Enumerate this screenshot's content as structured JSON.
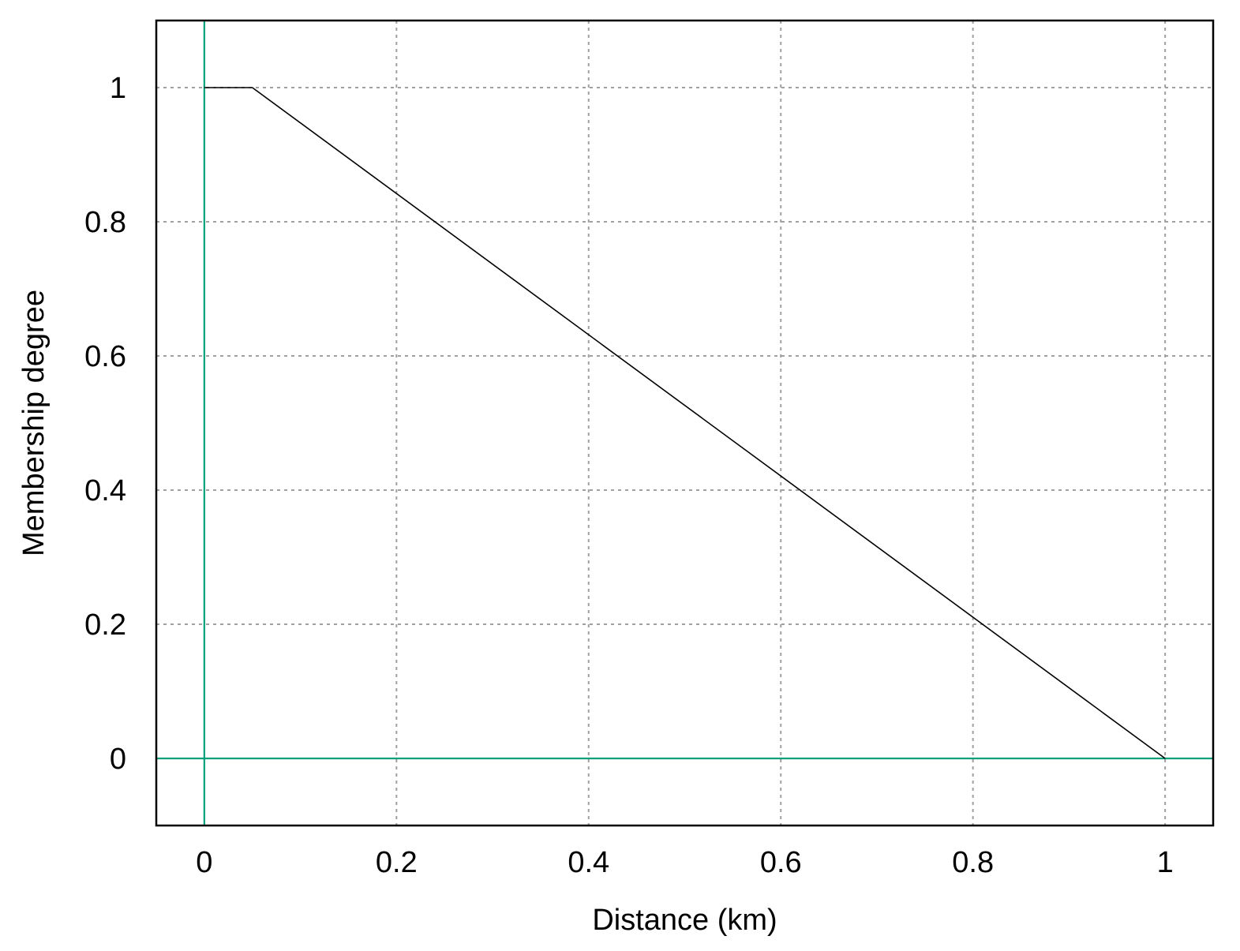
{
  "chart_data": {
    "type": "line",
    "title": "",
    "xlabel": "Distance (km)",
    "ylabel": "Membership degree",
    "xlim": [
      -0.05,
      1.05
    ],
    "ylim": [
      -0.1,
      1.1
    ],
    "x_ticks": [
      0,
      0.2,
      0.4,
      0.6,
      0.8,
      1
    ],
    "x_tick_labels": [
      "0",
      "0.2",
      "0.4",
      "0.6",
      "0.8",
      "1"
    ],
    "y_ticks": [
      0,
      0.2,
      0.4,
      0.6,
      0.8,
      1
    ],
    "y_tick_labels": [
      "0",
      "0.2",
      "0.4",
      "0.6",
      "0.8",
      "1"
    ],
    "grid": true,
    "zero_axes": true,
    "series": [
      {
        "x": [
          0,
          0.05,
          1
        ],
        "y": [
          1,
          1,
          0
        ],
        "color": "#000000"
      }
    ],
    "colors": {
      "grid": "#a0a0a0",
      "zero_axis": "#00a07a",
      "frame": "#000000"
    }
  }
}
